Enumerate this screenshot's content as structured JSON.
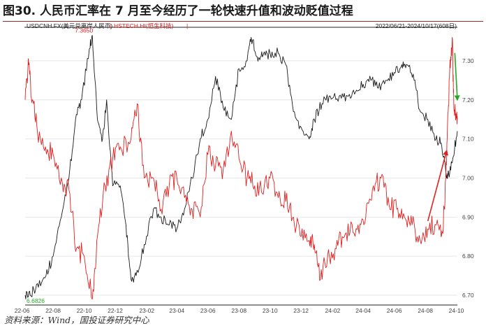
{
  "figure_title": "图30. 人民币汇率在 7 月至今经历了一轮快速升值和波动贬值过程",
  "source": "资料来源：Wind，国投证券研究中心",
  "chart_data": {
    "type": "line",
    "title": "",
    "xlabel": "",
    "ylabel": "",
    "date_range": "2022/06/21-2024/10/17(608日)",
    "x_ticks": [
      "22-06",
      "22-08",
      "22-10",
      "22-12",
      "23-02",
      "23-04",
      "23-06",
      "23-08",
      "23-10",
      "23-12",
      "24-02",
      "24-04",
      "24-06",
      "24-08",
      "24-10"
    ],
    "x_range": [
      "2022-06-21",
      "2024-10-17"
    ],
    "y_axis": "right",
    "y_ticks": [
      6.7,
      6.8,
      6.9,
      7.0,
      7.1,
      7.2,
      7.3
    ],
    "ylim": [
      6.675,
      7.375
    ],
    "grid": true,
    "legend": "top-left",
    "colors": {
      "usdcnh": "#1a1a1a",
      "hstech": "#e02020",
      "up_arrow": "#e02020",
      "down_arrow": "#22aa22",
      "max_label": "#e02020",
      "min_label": "#22aa22"
    },
    "series": [
      {
        "name": "USDCNH.FX(美元兑离岸人民币)",
        "color": "#1a1a1a",
        "points": [
          [
            "2022-06-21",
            6.7
          ],
          [
            "2022-07-01",
            6.7
          ],
          [
            "2022-07-15",
            6.73
          ],
          [
            "2022-08-01",
            6.75
          ],
          [
            "2022-08-15",
            6.8
          ],
          [
            "2022-08-31",
            6.9
          ],
          [
            "2022-09-15",
            7.0
          ],
          [
            "2022-09-28",
            7.15
          ],
          [
            "2022-10-10",
            7.2
          ],
          [
            "2022-10-25",
            7.33
          ],
          [
            "2022-10-31",
            7.365
          ],
          [
            "2022-11-10",
            7.15
          ],
          [
            "2022-11-20",
            7.1
          ],
          [
            "2022-11-28",
            7.2
          ],
          [
            "2022-12-10",
            6.98
          ],
          [
            "2022-12-25",
            6.98
          ],
          [
            "2023-01-05",
            6.88
          ],
          [
            "2023-01-15",
            6.74
          ],
          [
            "2023-01-25",
            6.75
          ],
          [
            "2023-02-10",
            6.83
          ],
          [
            "2023-02-28",
            6.92
          ],
          [
            "2023-03-15",
            6.9
          ],
          [
            "2023-03-31",
            6.88
          ],
          [
            "2023-04-15",
            6.87
          ],
          [
            "2023-04-30",
            6.92
          ],
          [
            "2023-05-15",
            7.0
          ],
          [
            "2023-05-31",
            7.1
          ],
          [
            "2023-06-15",
            7.15
          ],
          [
            "2023-06-30",
            7.26
          ],
          [
            "2023-07-15",
            7.18
          ],
          [
            "2023-07-31",
            7.15
          ],
          [
            "2023-08-15",
            7.28
          ],
          [
            "2023-08-31",
            7.3
          ],
          [
            "2023-09-08",
            7.36
          ],
          [
            "2023-09-20",
            7.31
          ],
          [
            "2023-09-30",
            7.31
          ],
          [
            "2023-10-15",
            7.32
          ],
          [
            "2023-10-31",
            7.32
          ],
          [
            "2023-11-15",
            7.29
          ],
          [
            "2023-11-30",
            7.17
          ],
          [
            "2023-12-15",
            7.13
          ],
          [
            "2023-12-31",
            7.1
          ],
          [
            "2024-01-10",
            7.15
          ],
          [
            "2024-01-25",
            7.19
          ],
          [
            "2024-02-10",
            7.21
          ],
          [
            "2024-02-28",
            7.21
          ],
          [
            "2024-03-15",
            7.21
          ],
          [
            "2024-03-31",
            7.22
          ],
          [
            "2024-04-15",
            7.24
          ],
          [
            "2024-04-30",
            7.25
          ],
          [
            "2024-05-15",
            7.23
          ],
          [
            "2024-05-31",
            7.25
          ],
          [
            "2024-06-15",
            7.27
          ],
          [
            "2024-06-30",
            7.29
          ],
          [
            "2024-07-10",
            7.29
          ],
          [
            "2024-07-24",
            7.25
          ],
          [
            "2024-08-05",
            7.17
          ],
          [
            "2024-08-20",
            7.15
          ],
          [
            "2024-09-05",
            7.1
          ],
          [
            "2024-09-15",
            7.09
          ],
          [
            "2024-09-26",
            7.0
          ],
          [
            "2024-09-30",
            7.01
          ],
          [
            "2024-10-08",
            7.05
          ],
          [
            "2024-10-17",
            7.12
          ]
        ]
      },
      {
        "name": "HSTECH.HI(恒生科技)",
        "color": "#e02020",
        "points": [
          [
            "2022-06-21",
            7.2
          ],
          [
            "2022-06-28",
            7.29
          ],
          [
            "2022-07-05",
            7.2
          ],
          [
            "2022-07-15",
            7.12
          ],
          [
            "2022-07-31",
            7.08
          ],
          [
            "2022-08-15",
            7.06
          ],
          [
            "2022-08-31",
            7.0
          ],
          [
            "2022-09-15",
            6.97
          ],
          [
            "2022-09-30",
            6.82
          ],
          [
            "2022-10-15",
            6.8
          ],
          [
            "2022-10-31",
            6.69
          ],
          [
            "2022-11-10",
            6.85
          ],
          [
            "2022-11-25",
            6.98
          ],
          [
            "2022-12-10",
            7.05
          ],
          [
            "2022-12-25",
            7.08
          ],
          [
            "2023-01-15",
            7.1
          ],
          [
            "2023-01-27",
            7.19
          ],
          [
            "2023-02-10",
            7.0
          ],
          [
            "2023-02-28",
            7.0
          ],
          [
            "2023-03-15",
            6.92
          ],
          [
            "2023-03-31",
            6.98
          ],
          [
            "2023-04-15",
            7.0
          ],
          [
            "2023-04-30",
            6.95
          ],
          [
            "2023-05-15",
            6.92
          ],
          [
            "2023-05-31",
            6.9
          ],
          [
            "2023-06-15",
            7.06
          ],
          [
            "2023-06-30",
            7.03
          ],
          [
            "2023-07-15",
            7.02
          ],
          [
            "2023-07-31",
            7.12
          ],
          [
            "2023-08-15",
            7.05
          ],
          [
            "2023-08-31",
            7.0
          ],
          [
            "2023-09-15",
            6.98
          ],
          [
            "2023-09-30",
            6.96
          ],
          [
            "2023-10-15",
            7.0
          ],
          [
            "2023-10-31",
            6.95
          ],
          [
            "2023-11-15",
            6.94
          ],
          [
            "2023-11-30",
            6.9
          ],
          [
            "2023-12-15",
            6.85
          ],
          [
            "2023-12-31",
            6.84
          ],
          [
            "2024-01-10",
            6.83
          ],
          [
            "2024-01-22",
            6.74
          ],
          [
            "2024-02-05",
            6.8
          ],
          [
            "2024-02-20",
            6.82
          ],
          [
            "2024-03-05",
            6.85
          ],
          [
            "2024-03-20",
            6.86
          ],
          [
            "2024-04-05",
            6.88
          ],
          [
            "2024-04-20",
            6.9
          ],
          [
            "2024-05-05",
            6.98
          ],
          [
            "2024-05-20",
            7.0
          ],
          [
            "2024-06-05",
            6.93
          ],
          [
            "2024-06-20",
            6.92
          ],
          [
            "2024-07-05",
            6.9
          ],
          [
            "2024-07-20",
            6.88
          ],
          [
            "2024-08-05",
            6.84
          ],
          [
            "2024-08-20",
            6.87
          ],
          [
            "2024-09-05",
            6.88
          ],
          [
            "2024-09-15",
            6.85
          ],
          [
            "2024-09-22",
            6.92
          ],
          [
            "2024-09-27",
            7.1
          ],
          [
            "2024-10-02",
            7.28
          ],
          [
            "2024-10-07",
            7.36
          ],
          [
            "2024-10-10",
            7.18
          ],
          [
            "2024-10-14",
            7.15
          ],
          [
            "2024-10-17",
            7.15
          ]
        ]
      }
    ],
    "annotations": [
      {
        "kind": "label",
        "text": "7.3650",
        "x": "2022-10-31",
        "y": 7.365,
        "color": "#e02020"
      },
      {
        "kind": "label",
        "text": "6.6826",
        "x": "2022-06-21",
        "y": 6.6826,
        "color": "#22aa22"
      },
      {
        "kind": "arrow",
        "from": [
          "2024-08-20",
          6.89
        ],
        "to": [
          "2024-09-26",
          7.07
        ],
        "color": "#e02020"
      },
      {
        "kind": "arrow",
        "from": [
          "2024-10-12",
          7.32
        ],
        "to": [
          "2024-10-17",
          7.2
        ],
        "color": "#22aa22"
      }
    ]
  }
}
